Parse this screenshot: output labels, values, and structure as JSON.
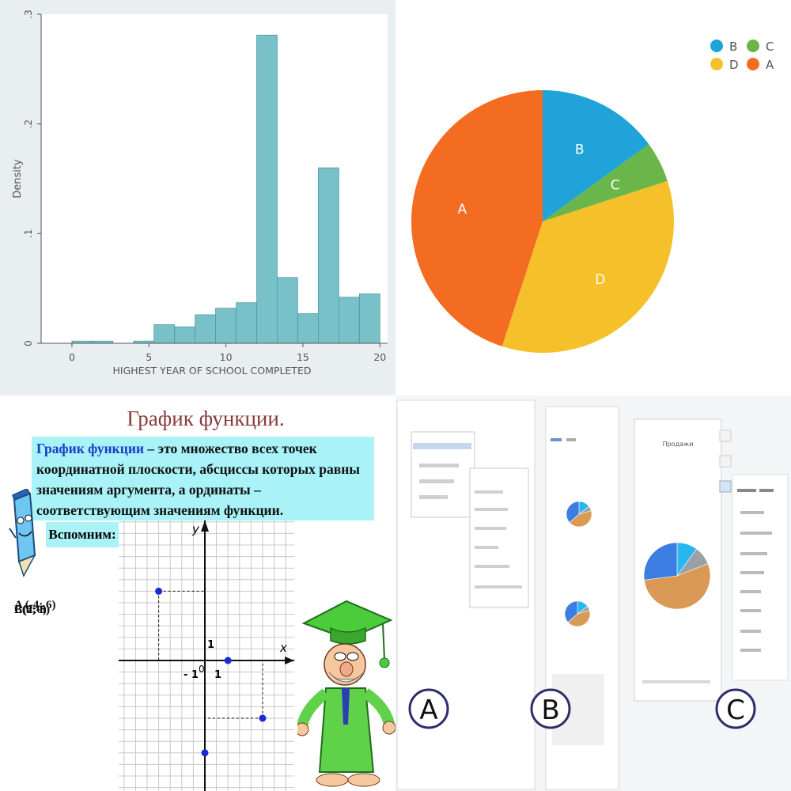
{
  "histogram": {
    "ylabel": "Density",
    "xlabel": "HIGHEST YEAR OF SCHOOL COMPLETED",
    "yticks": [
      "0",
      ".1",
      ".2",
      ".3"
    ],
    "xticks": [
      "0",
      "5",
      "10",
      "15",
      "20"
    ],
    "colors": {
      "bar": "#79c1c9",
      "bar_edge": "#4f9aa3",
      "bg": "#e9eef1"
    },
    "chart_data": {
      "type": "bar",
      "xlim": [
        -2,
        20.5
      ],
      "ylim": [
        0,
        0.3
      ],
      "bin_width": 1.33,
      "bins": [
        {
          "x_start": 0.0,
          "density": 0.002
        },
        {
          "x_start": 1.33,
          "density": 0.002
        },
        {
          "x_start": 4.0,
          "density": 0.002
        },
        {
          "x_start": 5.33,
          "density": 0.017
        },
        {
          "x_start": 6.67,
          "density": 0.015
        },
        {
          "x_start": 8.0,
          "density": 0.026
        },
        {
          "x_start": 9.33,
          "density": 0.032
        },
        {
          "x_start": 10.67,
          "density": 0.037
        },
        {
          "x_start": 12.0,
          "density": 0.281
        },
        {
          "x_start": 13.33,
          "density": 0.06
        },
        {
          "x_start": 14.67,
          "density": 0.027
        },
        {
          "x_start": 16.0,
          "density": 0.16
        },
        {
          "x_start": 17.33,
          "density": 0.042
        },
        {
          "x_start": 18.67,
          "density": 0.045
        }
      ]
    }
  },
  "pie": {
    "legend": [
      {
        "label": "B",
        "color": "#1fa3d8"
      },
      {
        "label": "C",
        "color": "#6ab64a"
      },
      {
        "label": "D",
        "color": "#f5c02a"
      },
      {
        "label": "A",
        "color": "#f36c21"
      }
    ],
    "chart_data": {
      "type": "pie",
      "slices": [
        {
          "label": "B",
          "value": 15,
          "color": "#1fa3d8"
        },
        {
          "label": "C",
          "value": 5,
          "color": "#6ab64a"
        },
        {
          "label": "D",
          "value": 35,
          "color": "#f5c02a"
        },
        {
          "label": "A",
          "value": 45,
          "color": "#f36c21"
        }
      ]
    }
  },
  "math": {
    "title": "График функции.",
    "definition_term": "График функции",
    "definition_rest": " – это множество всех точек координатной плоскости, абсциссы которых равны значениям аргумента, а ординаты – соответствующим значениям функции.",
    "recall": "Вспомним:",
    "point_texts": [
      "A (-4; 6)",
      "B(0;-8)",
      "C(2;0)",
      "E(5;-5)"
    ],
    "axis_x": "x",
    "axis_y": "y",
    "tick_one_x": "1",
    "tick_one_y": "1",
    "tick_minus_one": "- 1",
    "origin": "0",
    "chart_data": {
      "type": "scatter",
      "points": [
        {
          "label": "A",
          "x": -4,
          "y": 6
        },
        {
          "label": "C",
          "x": 2,
          "y": 0
        },
        {
          "label": "E",
          "x": 5,
          "y": -5
        },
        {
          "label": "B",
          "x": 0,
          "y": -8
        }
      ]
    }
  },
  "screens": {
    "labels": [
      "A",
      "B",
      "C"
    ],
    "chart_title": "Продажи"
  }
}
